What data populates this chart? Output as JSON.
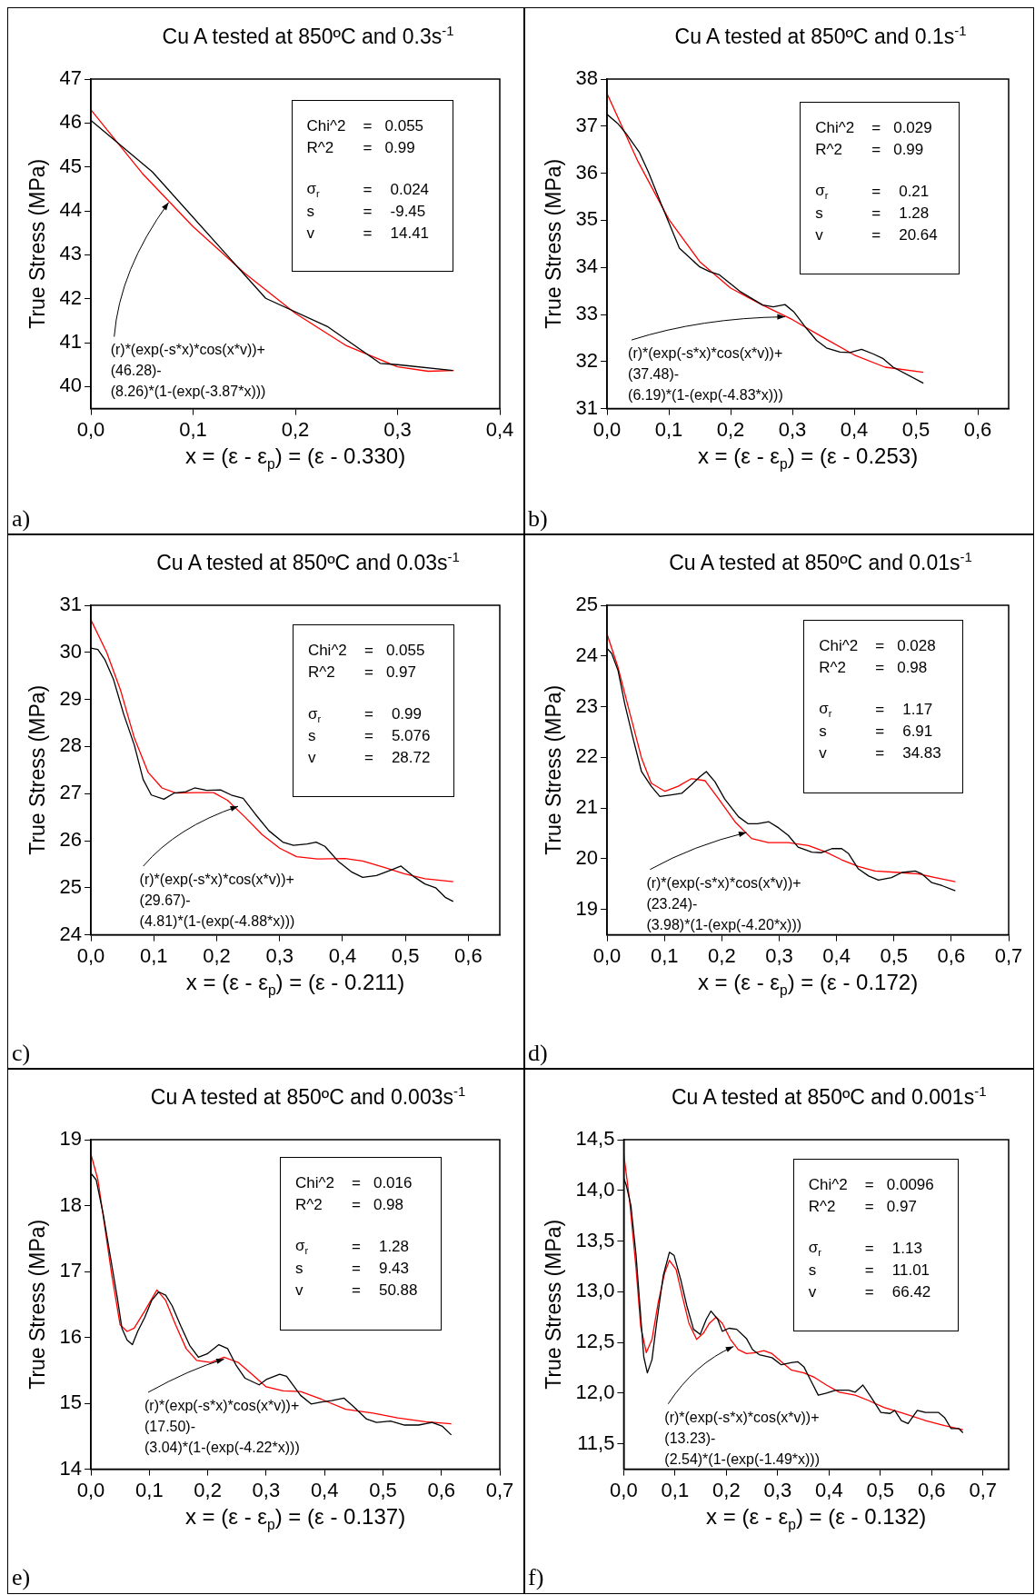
{
  "chart_data": [
    {
      "type": "line",
      "title": "Cu A tested at 850ºC and 0.3s$^{-1}$",
      "xlabel": "x = (ε - ε$_{p}$) = (ε - 0.330)",
      "ylabel": "True Stress (MPa)",
      "marker": "none",
      "xlim": [
        0,
        0.4
      ],
      "xticks": [
        {
          "value": 0,
          "label": "0,0"
        },
        {
          "value": 0.1,
          "label": "0,1"
        },
        {
          "value": 0.2,
          "label": "0,2"
        },
        {
          "value": 0.3,
          "label": "0,3"
        },
        {
          "value": 0.4,
          "label": "0,4"
        }
      ],
      "ylim": [
        39.5,
        47
      ],
      "yticks": [
        40,
        41,
        42,
        43,
        44,
        45,
        46,
        47
      ],
      "series": [
        {
          "color": "#000000",
          "x": [
            0,
            0.06,
            0.171,
            0.232,
            0.283,
            0.3,
            0.354
          ],
          "values": [
            46.06,
            44.89,
            42.01,
            41.36,
            40.53,
            40.5,
            40.37
          ]
        },
        {
          "color": "#ff0000",
          "x": [
            0,
            0.05,
            0.1,
            0.15,
            0.2,
            0.25,
            0.3,
            0.33,
            0.355
          ],
          "values": [
            46.3,
            44.86,
            43.64,
            42.59,
            41.67,
            40.93,
            40.45,
            40.35,
            40.37
          ]
        }
      ],
      "annotations": [
        "Chi^2 = 0.055",
        "R^2 = 0.99",
        "σ$_{r}$ = 0.024",
        "s = -9.45",
        "v = 14.41",
        {
          "text": "(r)*(exp(-s*x)*cos(x*v))+\n(46.28)-\n(8.26)*(1-(exp(-3.87*x)))",
          "x": 0.076,
          "y": 44.19
        },
        "a)"
      ]
    },
    {
      "type": "line",
      "title": "Cu A tested at 850ºC and 0.1s$^{-1}$",
      "xlabel": "x = (ε - ε$_{p}$) = (ε - 0.253)",
      "ylabel": "True Stress (MPa)",
      "marker": "none",
      "xlim": [
        0,
        0.65
      ],
      "xticks": [
        {
          "value": 0,
          "label": "0,0"
        },
        {
          "value": 0.1,
          "label": "0,1"
        },
        {
          "value": 0.2,
          "label": "0,2"
        },
        {
          "value": 0.3,
          "label": "0,3"
        },
        {
          "value": 0.4,
          "label": "0,4"
        },
        {
          "value": 0.5,
          "label": "0,5"
        },
        {
          "value": 0.6,
          "label": "0,6"
        }
      ],
      "ylim": [
        31,
        38
      ],
      "yticks": [
        31,
        32,
        33,
        34,
        35,
        36,
        37,
        38
      ],
      "series": [
        {
          "color": "#000000",
          "x": [
            0,
            0.017,
            0.031,
            0.052,
            0.067,
            0.09,
            0.117,
            0.15,
            0.166,
            0.182,
            0.215,
            0.252,
            0.269,
            0.288,
            0.302,
            0.323,
            0.339,
            0.355,
            0.377,
            0.393,
            0.412,
            0.431,
            0.447,
            0.463,
            0.512
          ],
          "values": [
            37.25,
            37.06,
            36.84,
            36.45,
            36.02,
            35.27,
            34.41,
            34.01,
            33.91,
            33.84,
            33.49,
            33.2,
            33.16,
            33.21,
            33.06,
            32.7,
            32.45,
            32.29,
            32.2,
            32.19,
            32.26,
            32.16,
            32.06,
            31.88,
            31.54
          ]
        },
        {
          "color": "#ff0000",
          "x": [
            0,
            0.05,
            0.1,
            0.15,
            0.2,
            0.25,
            0.3,
            0.35,
            0.4,
            0.45,
            0.512
          ],
          "values": [
            37.69,
            36.25,
            35.02,
            34.12,
            33.56,
            33.21,
            32.89,
            32.51,
            32.14,
            31.88,
            31.77
          ]
        }
      ],
      "annotations": [
        "Chi^2 = 0.029",
        "R^2 = 0.99",
        "σ$_{r}$ = 0.21",
        "s = 1.28",
        "v = 20.64",
        {
          "text": "(r)*(exp(-s*x)*cos(x*v))+\n(37.48)-\n(6.19)*(1-(exp(-4.83*x)))",
          "x": 0.288,
          "y": 32.95
        },
        "b)"
      ]
    },
    {
      "type": "line",
      "title": "Cu A tested at 850ºC and 0.03s$^{-1}$",
      "xlabel": "x = (ε - ε$_{p}$) = (ε - 0.211)",
      "ylabel": "True Stress (MPa)",
      "marker": "none",
      "xlim": [
        0,
        0.65
      ],
      "xticks": [
        {
          "value": 0,
          "label": "0,0"
        },
        {
          "value": 0.1,
          "label": "0,1"
        },
        {
          "value": 0.2,
          "label": "0,2"
        },
        {
          "value": 0.3,
          "label": "0,3"
        },
        {
          "value": 0.4,
          "label": "0,4"
        },
        {
          "value": 0.5,
          "label": "0,5"
        },
        {
          "value": 0.6,
          "label": "0,6"
        }
      ],
      "ylim": [
        24,
        31
      ],
      "yticks": [
        24,
        25,
        26,
        27,
        28,
        29,
        30,
        31
      ],
      "series": [
        {
          "color": "#000000",
          "x": [
            0,
            0.011,
            0.022,
            0.036,
            0.052,
            0.069,
            0.083,
            0.096,
            0.116,
            0.132,
            0.151,
            0.165,
            0.184,
            0.206,
            0.223,
            0.242,
            0.261,
            0.283,
            0.305,
            0.322,
            0.344,
            0.358,
            0.372,
            0.394,
            0.415,
            0.432,
            0.454,
            0.476,
            0.493,
            0.515,
            0.531,
            0.548,
            0.564,
            0.576
          ],
          "values": [
            30.09,
            30.06,
            29.85,
            29.42,
            28.69,
            28.03,
            27.3,
            26.97,
            26.88,
            27.01,
            27.04,
            27.12,
            27.07,
            27.08,
            26.97,
            26.9,
            26.57,
            26.21,
            25.97,
            25.9,
            25.93,
            25.97,
            25.88,
            25.55,
            25.33,
            25.22,
            25.26,
            25.37,
            25.46,
            25.22,
            25.08,
            25.0,
            24.79,
            24.71
          ]
        },
        {
          "color": "#ff0000",
          "x": [
            0,
            0.025,
            0.047,
            0.069,
            0.091,
            0.113,
            0.135,
            0.168,
            0.195,
            0.217,
            0.245,
            0.272,
            0.3,
            0.327,
            0.36,
            0.404,
            0.432,
            0.465,
            0.498,
            0.531,
            0.576
          ],
          "values": [
            30.69,
            30.0,
            29.2,
            28.18,
            27.45,
            27.12,
            27.01,
            27.02,
            27.02,
            26.86,
            26.5,
            26.13,
            25.84,
            25.66,
            25.61,
            25.62,
            25.57,
            25.44,
            25.3,
            25.19,
            25.13
          ]
        }
      ],
      "annotations": [
        "Chi^2 = 0.055",
        "R^2 = 0.97",
        "σ$_{r}$ = 0.99",
        "s = 5.076",
        "v = 28.72",
        {
          "text": "(r)*(exp(-s*x)*cos(x*v))+\n(29.67)-\n(4.81)*(1-(exp(-4.88*x)))",
          "x": 0.234,
          "y": 26.73
        },
        "c)"
      ]
    },
    {
      "type": "line",
      "title": "Cu A tested at 850ºC and 0.01s$^{-1}$",
      "xlabel": "x = (ε - ε$_{p}$) = (ε - 0.172)",
      "ylabel": "True Stress (MPa)",
      "marker": "none",
      "xlim": [
        0,
        0.7
      ],
      "xticks": [
        {
          "value": 0,
          "label": "0,0"
        },
        {
          "value": 0.1,
          "label": "0,1"
        },
        {
          "value": 0.2,
          "label": "0,2"
        },
        {
          "value": 0.3,
          "label": "0,3"
        },
        {
          "value": 0.4,
          "label": "0,4"
        },
        {
          "value": 0.5,
          "label": "0,5"
        },
        {
          "value": 0.6,
          "label": "0,6"
        },
        {
          "value": 0.7,
          "label": "0,7"
        }
      ],
      "ylim": [
        18.5,
        25
      ],
      "yticks": [
        19,
        20,
        21,
        22,
        23,
        24,
        25
      ],
      "series": [
        {
          "color": "#000000",
          "x": [
            0,
            0.008,
            0.019,
            0.031,
            0.045,
            0.06,
            0.077,
            0.092,
            0.112,
            0.13,
            0.147,
            0.162,
            0.173,
            0.188,
            0.205,
            0.229,
            0.246,
            0.262,
            0.282,
            0.299,
            0.316,
            0.333,
            0.357,
            0.374,
            0.392,
            0.409,
            0.421,
            0.438,
            0.456,
            0.473,
            0.496,
            0.514,
            0.537,
            0.549,
            0.566,
            0.584,
            0.607
          ],
          "values": [
            24.15,
            24.05,
            23.72,
            23.05,
            22.39,
            21.72,
            21.43,
            21.23,
            21.26,
            21.29,
            21.46,
            21.62,
            21.72,
            21.52,
            21.18,
            20.83,
            20.69,
            20.69,
            20.73,
            20.61,
            20.46,
            20.23,
            20.13,
            20.12,
            20.2,
            20.2,
            20.1,
            19.8,
            19.66,
            19.58,
            19.63,
            19.73,
            19.76,
            19.7,
            19.53,
            19.47,
            19.37
          ]
        },
        {
          "color": "#ff0000",
          "x": [
            0,
            0.019,
            0.037,
            0.06,
            0.077,
            0.101,
            0.124,
            0.147,
            0.171,
            0.194,
            0.223,
            0.252,
            0.281,
            0.316,
            0.351,
            0.38,
            0.409,
            0.438,
            0.467,
            0.508,
            0.543,
            0.572,
            0.607
          ],
          "values": [
            24.43,
            23.78,
            22.99,
            21.99,
            21.49,
            21.33,
            21.43,
            21.58,
            21.54,
            21.19,
            20.73,
            20.4,
            20.32,
            20.32,
            20.26,
            20.14,
            19.98,
            19.85,
            19.76,
            19.73,
            19.7,
            19.63,
            19.55
          ]
        }
      ],
      "annotations": [
        "Chi^2 = 0.028",
        "R^2 = 0.98",
        "σ$_{r}$ = 1.17",
        "s = 6.91",
        "v = 34.83",
        {
          "text": "(r)*(exp(-s*x)*cos(x*v))+\n(23.24)-\n(3.98)*(1-(exp(-4.20*x)))",
          "x": 0.243,
          "y": 20.52
        },
        "d)"
      ]
    },
    {
      "type": "line",
      "title": "Cu A tested at 850ºC and 0.003s$^{-1}$",
      "xlabel": "x = (ε - ε$_{p}$) = (ε - 0.137)",
      "ylabel": "True Stress (MPa)",
      "marker": "none",
      "xlim": [
        0,
        0.7
      ],
      "xticks": [
        {
          "value": 0,
          "label": "0,0"
        },
        {
          "value": 0.1,
          "label": "0,1"
        },
        {
          "value": 0.2,
          "label": "0,2"
        },
        {
          "value": 0.3,
          "label": "0,3"
        },
        {
          "value": 0.4,
          "label": "0,4"
        },
        {
          "value": 0.5,
          "label": "0,5"
        },
        {
          "value": 0.6,
          "label": "0,6"
        },
        {
          "value": 0.7,
          "label": "0,7"
        }
      ],
      "ylim": [
        14,
        19
      ],
      "yticks": [
        14,
        15,
        16,
        17,
        18,
        19
      ],
      "series": [
        {
          "color": "#000000",
          "x": [
            0,
            0.009,
            0.021,
            0.033,
            0.045,
            0.053,
            0.062,
            0.071,
            0.08,
            0.092,
            0.104,
            0.116,
            0.128,
            0.139,
            0.154,
            0.169,
            0.184,
            0.199,
            0.219,
            0.234,
            0.249,
            0.264,
            0.288,
            0.3,
            0.323,
            0.335,
            0.359,
            0.377,
            0.395,
            0.412,
            0.433,
            0.451,
            0.472,
            0.489,
            0.513,
            0.537,
            0.561,
            0.584,
            0.602,
            0.617
          ],
          "values": [
            18.49,
            18.39,
            17.87,
            17.24,
            16.61,
            16.14,
            15.96,
            15.89,
            16.09,
            16.3,
            16.56,
            16.69,
            16.64,
            16.48,
            16.17,
            15.88,
            15.7,
            15.75,
            15.89,
            15.83,
            15.57,
            15.38,
            15.28,
            15.36,
            15.44,
            15.41,
            15.12,
            14.99,
            15.02,
            15.04,
            15.08,
            14.94,
            14.76,
            14.71,
            14.73,
            14.67,
            14.67,
            14.71,
            14.65,
            14.52
          ]
        },
        {
          "color": "#ff0000",
          "x": [
            0,
            0.012,
            0.024,
            0.036,
            0.05,
            0.062,
            0.074,
            0.092,
            0.113,
            0.128,
            0.145,
            0.163,
            0.181,
            0.205,
            0.228,
            0.252,
            0.276,
            0.3,
            0.329,
            0.359,
            0.395,
            0.436,
            0.483,
            0.525,
            0.573,
            0.617
          ],
          "values": [
            18.78,
            18.39,
            17.66,
            16.93,
            16.19,
            16.09,
            16.14,
            16.4,
            16.72,
            16.56,
            16.19,
            15.83,
            15.65,
            15.62,
            15.7,
            15.62,
            15.44,
            15.25,
            15.19,
            15.18,
            15.06,
            14.91,
            14.85,
            14.78,
            14.72,
            14.69
          ]
        }
      ],
      "annotations": [
        "Chi^2 = 0.016",
        "R^2 = 0.98",
        "σ$_{r}$ = 1.28",
        "s = 9.43",
        "v = 50.88",
        {
          "text": "(r)*(exp(-s*x)*cos(x*v))+\n(17.50)-\n(3.04)*(1-(exp(-4.22*x)))",
          "x": 0.228,
          "y": 15.67
        },
        "e)"
      ]
    },
    {
      "type": "line",
      "title": "Cu A tested at 850ºC and 0.001s$^{-1}$",
      "xlabel": "x = (ε - ε$_{p}$) = (ε - 0.132)",
      "ylabel": "True Stress (MPa)",
      "marker": "none",
      "xlim": [
        0,
        0.75
      ],
      "xticks": [
        {
          "value": 0,
          "label": "0,0"
        },
        {
          "value": 0.1,
          "label": "0,1"
        },
        {
          "value": 0.2,
          "label": "0,2"
        },
        {
          "value": 0.3,
          "label": "0,3"
        },
        {
          "value": 0.4,
          "label": "0,4"
        },
        {
          "value": 0.5,
          "label": "0,5"
        },
        {
          "value": 0.6,
          "label": "0,6"
        },
        {
          "value": 0.7,
          "label": "0,7"
        }
      ],
      "ylim": [
        11.25,
        14.5
      ],
      "yticks": [
        {
          "value": 11.5,
          "label": "11,5"
        },
        {
          "value": 12,
          "label": "12,0"
        },
        {
          "value": 12.5,
          "label": "12,5"
        },
        {
          "value": 13,
          "label": "13,0"
        },
        {
          "value": 13.5,
          "label": "13,5"
        },
        {
          "value": 14,
          "label": "14,0"
        },
        {
          "value": 14.5,
          "label": "14,5"
        }
      ],
      "series": [
        {
          "color": "#000000",
          "x": [
            0,
            0.005,
            0.014,
            0.024,
            0.033,
            0.039,
            0.046,
            0.055,
            0.064,
            0.077,
            0.089,
            0.098,
            0.111,
            0.123,
            0.136,
            0.149,
            0.161,
            0.17,
            0.183,
            0.192,
            0.205,
            0.22,
            0.239,
            0.251,
            0.264,
            0.289,
            0.307,
            0.326,
            0.339,
            0.351,
            0.364,
            0.379,
            0.395,
            0.413,
            0.438,
            0.451,
            0.466,
            0.482,
            0.501,
            0.519,
            0.528,
            0.541,
            0.554,
            0.572,
            0.588,
            0.613,
            0.625,
            0.638,
            0.653,
            0.661
          ],
          "values": [
            14.12,
            14.05,
            13.85,
            13.36,
            12.76,
            12.36,
            12.2,
            12.33,
            12.69,
            13.16,
            13.39,
            13.36,
            13.12,
            12.86,
            12.63,
            12.58,
            12.73,
            12.81,
            12.73,
            12.61,
            12.64,
            12.63,
            12.54,
            12.43,
            12.38,
            12.35,
            12.28,
            12.3,
            12.31,
            12.26,
            12.13,
            11.98,
            12.0,
            12.03,
            12.03,
            12.01,
            12.08,
            11.96,
            11.81,
            11.8,
            11.83,
            11.73,
            11.7,
            11.83,
            11.81,
            11.81,
            11.76,
            11.65,
            11.65,
            11.61
          ]
        },
        {
          "color": "#ff0000",
          "x": [
            0,
            0.011,
            0.024,
            0.033,
            0.044,
            0.055,
            0.067,
            0.08,
            0.089,
            0.102,
            0.114,
            0.127,
            0.142,
            0.155,
            0.167,
            0.18,
            0.192,
            0.208,
            0.223,
            0.239,
            0.257,
            0.273,
            0.289,
            0.307,
            0.326,
            0.351,
            0.37,
            0.395,
            0.42,
            0.451,
            0.476,
            0.507,
            0.545,
            0.588,
            0.625,
            0.661
          ],
          "values": [
            14.36,
            13.92,
            13.23,
            12.66,
            12.4,
            12.53,
            12.89,
            13.19,
            13.31,
            13.22,
            12.96,
            12.69,
            12.53,
            12.59,
            12.69,
            12.75,
            12.69,
            12.53,
            12.43,
            12.39,
            12.4,
            12.42,
            12.39,
            12.31,
            12.23,
            12.2,
            12.16,
            12.08,
            12.01,
            11.98,
            11.93,
            11.86,
            11.8,
            11.73,
            11.68,
            11.64
          ]
        }
      ],
      "annotations": [
        "Chi^2 = 0.0096",
        "R^2 = 0.97",
        "σ$_{r}$ = 1.13",
        "s = 11.01",
        "v = 66.42",
        {
          "text": "(r)*(exp(-s*x)*cos(x*v))+\n(13.23)-\n(2.54)*(1-(exp(-1.49*x)))",
          "x": 0.214,
          "y": 12.46
        },
        "f)"
      ]
    }
  ]
}
